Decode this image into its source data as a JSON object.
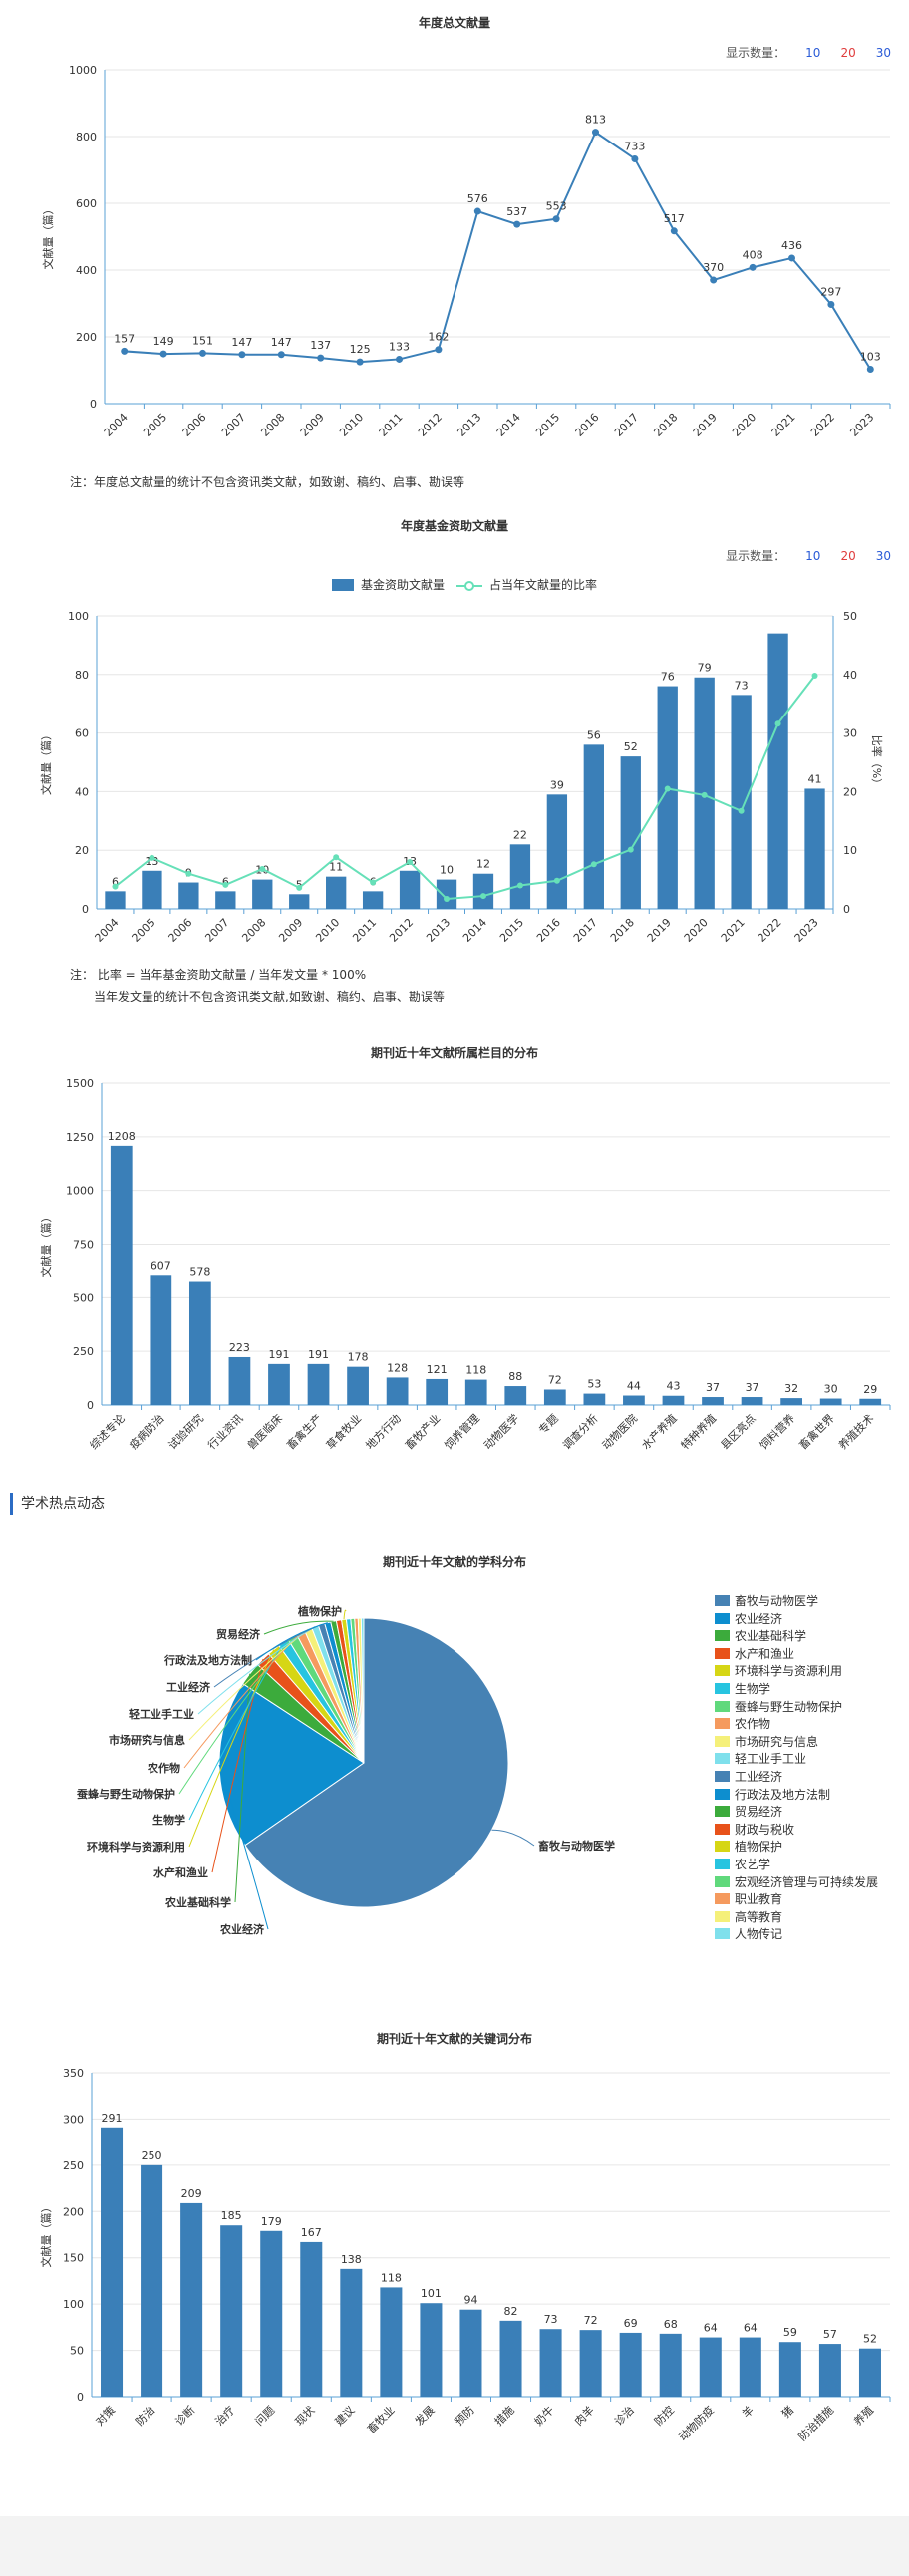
{
  "common": {
    "show_label": "显示数量：",
    "show_options": [
      "10",
      "20",
      "30"
    ],
    "option_colors": [
      "#2a5bd7",
      "#e03c3c",
      "#2a5bd7"
    ]
  },
  "chart1": {
    "title": "年度总文献量",
    "note": "注：年度总文献量的统计不包含资讯类文献，如致谢、稿约、启事、勘误等",
    "chart_data": {
      "type": "line",
      "title": "年度总文献量",
      "ylabel": "文献量（篇）",
      "ylim": [
        0,
        1000
      ],
      "yticks": [
        0,
        200,
        400,
        600,
        800,
        1000
      ],
      "x": [
        "2004",
        "2005",
        "2006",
        "2007",
        "2008",
        "2009",
        "2010",
        "2011",
        "2012",
        "2013",
        "2014",
        "2015",
        "2016",
        "2017",
        "2018",
        "2019",
        "2020",
        "2021",
        "2022",
        "2023"
      ],
      "values": [
        157,
        149,
        151,
        147,
        147,
        137,
        125,
        133,
        162,
        576,
        537,
        553,
        813,
        733,
        517,
        370,
        408,
        436,
        297,
        103
      ],
      "color": "#3a7fb8"
    }
  },
  "chart2": {
    "title": "年度基金资助文献量",
    "note_lines": [
      "注：  比率 = 当年基金资助文献量 / 当年发文量 * 100%",
      "当年发文量的统计不包含资讯类文献,如致谢、稿约、启事、勘误等"
    ],
    "chart_data": {
      "type": "bar",
      "title": "年度基金资助文献量",
      "ylabel": "文献量（篇）",
      "y2label": "比率（%）",
      "ylim": [
        0,
        100
      ],
      "y2lim": [
        0,
        50
      ],
      "yticks": [
        0,
        20,
        40,
        60,
        80,
        100
      ],
      "y2ticks": [
        0,
        10,
        20,
        30,
        40,
        50
      ],
      "categories": [
        "2004",
        "2005",
        "2006",
        "2007",
        "2008",
        "2009",
        "2010",
        "2011",
        "2012",
        "2013",
        "2014",
        "2015",
        "2016",
        "2017",
        "2018",
        "2019",
        "2020",
        "2021",
        "2022",
        "2023"
      ],
      "series": [
        {
          "name": "基金资助文献量",
          "type": "bar",
          "color": "#3a7fb8",
          "values": [
            6,
            13,
            9,
            6,
            10,
            5,
            11,
            6,
            13,
            10,
            12,
            22,
            39,
            56,
            52,
            76,
            79,
            73,
            94,
            41
          ],
          "labels": [
            "6",
            "13",
            "9",
            "6",
            "10",
            "5",
            "11",
            "6",
            "13",
            "10",
            "12",
            "22",
            "39",
            "56",
            "52",
            "76",
            "79",
            "73",
            "",
            "41"
          ]
        },
        {
          "name": "占当年文献量的比率",
          "type": "line",
          "color": "#66e0b8",
          "axis": "right",
          "values": [
            3.8,
            8.7,
            6.0,
            4.1,
            6.8,
            3.6,
            8.8,
            4.5,
            8.0,
            1.7,
            2.2,
            4.0,
            4.8,
            7.6,
            10.1,
            20.5,
            19.4,
            16.7,
            31.6,
            39.8
          ]
        }
      ],
      "legend": "top"
    }
  },
  "chart3": {
    "title": "期刊近十年文献所属栏目的分布",
    "chart_data": {
      "type": "bar",
      "title": "期刊近十年文献所属栏目的分布",
      "ylabel": "文献量（篇）",
      "ylim": [
        0,
        1500
      ],
      "yticks": [
        0,
        250,
        500,
        750,
        1000,
        1250,
        1500
      ],
      "categories": [
        "综述专论",
        "疫病防治",
        "试验研究",
        "行业资讯",
        "兽医临床",
        "畜禽生产",
        "草食牧业",
        "地方行动",
        "畜牧产业",
        "饲养管理",
        "动物医学",
        "专题",
        "调查分析",
        "动物医院",
        "水产养殖",
        "特种养殖",
        "县区亮点",
        "饲料营养",
        "畜禽世界",
        "养殖技术"
      ],
      "values": [
        1208,
        607,
        578,
        223,
        191,
        191,
        178,
        128,
        121,
        118,
        88,
        72,
        53,
        44,
        43,
        37,
        37,
        32,
        30,
        29
      ],
      "color": "#3a7fb8"
    }
  },
  "section": {
    "title": "学术热点动态"
  },
  "chart4": {
    "title": "期刊近十年文献的学科分布",
    "chart_data": {
      "type": "pie",
      "title": "期刊近十年文献的学科分布",
      "slices": [
        {
          "label": "畜牧与动物医学",
          "value": 2700,
          "color": "#4682b4"
        },
        {
          "label": "农业经济",
          "value": 780,
          "color": "#0d8ecf"
        },
        {
          "label": "农业基础科学",
          "value": 110,
          "color": "#3cab3c"
        },
        {
          "label": "水产和渔业",
          "value": 70,
          "color": "#e8521a"
        },
        {
          "label": "环境科学与资源利用",
          "value": 60,
          "color": "#d6d615"
        },
        {
          "label": "生物学",
          "value": 50,
          "color": "#27c4e0"
        },
        {
          "label": "蚕蜂与野生动物保护",
          "value": 45,
          "color": "#60d97c"
        },
        {
          "label": "农作物",
          "value": 40,
          "color": "#f59a5e"
        },
        {
          "label": "市场研究与信息",
          "value": 35,
          "color": "#f5f07a"
        },
        {
          "label": "轻工业手工业",
          "value": 32,
          "color": "#7fe0ec"
        },
        {
          "label": "工业经济",
          "value": 30,
          "color": "#4682b4"
        },
        {
          "label": "行政法及地方法制",
          "value": 28,
          "color": "#0d8ecf"
        },
        {
          "label": "贸易经济",
          "value": 26,
          "color": "#3cab3c"
        },
        {
          "label": "财政与税收",
          "value": 24,
          "color": "#e8521a"
        },
        {
          "label": "植物保护",
          "value": 22,
          "color": "#d6d615"
        },
        {
          "label": "农艺学",
          "value": 20,
          "color": "#27c4e0"
        },
        {
          "label": "宏观经济管理与可持续发展",
          "value": 18,
          "color": "#60d97c"
        },
        {
          "label": "职业教育",
          "value": 16,
          "color": "#f59a5e"
        },
        {
          "label": "高等教育",
          "value": 14,
          "color": "#f5f07a"
        },
        {
          "label": "人物传记",
          "value": 12,
          "color": "#7fe0ec"
        }
      ],
      "outside_labels": [
        "畜牧与动物医学",
        "农业经济",
        "农业基础科学",
        "水产和渔业",
        "环境科学与资源利用",
        "生物学",
        "蚕蜂与野生动物保护",
        "农作物",
        "市场研究与信息",
        "轻工业手工业",
        "工业经济",
        "行政法及地方法制",
        "贸易经济",
        "植物保护"
      ],
      "legend": "right"
    }
  },
  "chart5": {
    "title": "期刊近十年文献的关键词分布",
    "chart_data": {
      "type": "bar",
      "title": "期刊近十年文献的关键词分布",
      "ylabel": "文献量（篇）",
      "ylim": [
        0,
        350
      ],
      "yticks": [
        0,
        50,
        100,
        150,
        200,
        250,
        300,
        350
      ],
      "categories": [
        "对策",
        "防治",
        "诊断",
        "治疗",
        "问题",
        "现状",
        "建议",
        "畜牧业",
        "发展",
        "预防",
        "措施",
        "奶牛",
        "肉羊",
        "诊治",
        "防控",
        "动物防疫",
        "羊",
        "猪",
        "防治措施",
        "养殖"
      ],
      "values": [
        291,
        250,
        209,
        185,
        179,
        167,
        138,
        118,
        101,
        94,
        82,
        73,
        72,
        69,
        68,
        64,
        64,
        59,
        57,
        52
      ],
      "color": "#3a7fb8"
    }
  }
}
